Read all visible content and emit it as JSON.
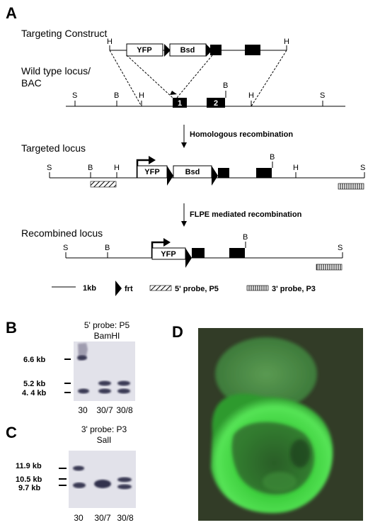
{
  "panel_a": {
    "letter": "A",
    "rows": {
      "targeting": "Targeting Construct",
      "wildtype_1": "Wild type locus/",
      "wildtype_2": "BAC",
      "targeted": "Targeted locus",
      "recombined": "Recombined locus"
    },
    "steps": {
      "homologous": "Homologous recombination",
      "flpe": "FLPE mediated recombination"
    },
    "boxes": {
      "yfp": "YFP",
      "bsd": "Bsd",
      "exon1": "1",
      "exon2": "2"
    },
    "sites": {
      "S": "S",
      "B": "B",
      "H": "H"
    },
    "legend": {
      "scale": "1kb",
      "frt": "frt",
      "probe5": "5' probe, P5",
      "probe3": "3' probe, P3"
    }
  },
  "panel_b": {
    "letter": "B",
    "title_1": "5' probe: P5",
    "title_2": "BamHI",
    "sizes": [
      "6.6 kb",
      "5.2 kb",
      "4. 4 kb"
    ],
    "lanes": [
      "30",
      "30/7",
      "30/8"
    ]
  },
  "panel_c": {
    "letter": "C",
    "title_1": "3' probe: P3",
    "title_2": "SalI",
    "sizes": [
      "11.9 kb",
      "10.5 kb",
      "9.7 kb"
    ],
    "lanes": [
      "30",
      "30/7",
      "30/8"
    ]
  },
  "panel_d": {
    "letter": "D"
  }
}
